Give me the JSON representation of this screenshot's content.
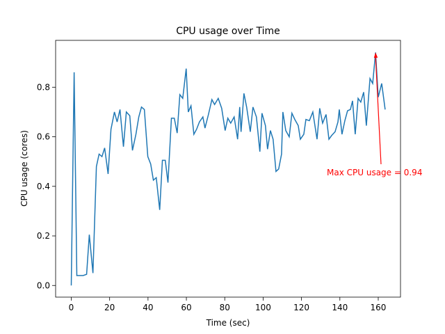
{
  "chart_data": {
    "type": "line",
    "title": "CPU usage over Time",
    "x_label": "Time (sec)",
    "y_label": "CPU usage (cores)",
    "annotation": "Max CPU usage = 0.94",
    "annotation_color": "#ff0000",
    "x": [
      0,
      1.5,
      2.9,
      4.4,
      6.2,
      8.0,
      9.4,
      11.3,
      13.1,
      14.5,
      16.0,
      17.4,
      19.2,
      20.7,
      22.5,
      23.9,
      25.4,
      27.2,
      28.7,
      30.5,
      31.9,
      33.7,
      35.2,
      36.6,
      38.1,
      39.9,
      41.4,
      42.8,
      44.3,
      46.1,
      47.5,
      49.0,
      50.4,
      52.2,
      53.7,
      55.2,
      56.6,
      58.1,
      59.9,
      61.0,
      62.4,
      63.9,
      65.3,
      66.8,
      68.6,
      69.7,
      71.5,
      73.3,
      74.7,
      76.6,
      78.4,
      80.2,
      81.6,
      83.1,
      84.9,
      86.7,
      87.8,
      88.5,
      90.0,
      91.4,
      93.3,
      94.7,
      96.5,
      98.3,
      99.4,
      101.2,
      102.3,
      103.8,
      105.2,
      106.7,
      108.1,
      109.6,
      110.3,
      111.8,
      113.6,
      115.0,
      116.5,
      118.3,
      119.4,
      121.2,
      122.3,
      124.1,
      125.9,
      128.1,
      129.5,
      131.0,
      132.8,
      134.3,
      135.7,
      137.5,
      139.0,
      139.7,
      141.1,
      142.6,
      144.0,
      145.5,
      146.6,
      148.0,
      149.5,
      150.9,
      152.4,
      153.8,
      155.7,
      157.1,
      158.6,
      160.0,
      161.8,
      163.6
    ],
    "series": [
      {
        "name": "CPU usage",
        "color": "#1f77b4",
        "values": [
          0.0,
          0.86,
          0.04,
          0.04,
          0.04,
          0.045,
          0.205,
          0.05,
          0.48,
          0.53,
          0.52,
          0.555,
          0.45,
          0.63,
          0.7,
          0.66,
          0.71,
          0.56,
          0.7,
          0.685,
          0.545,
          0.61,
          0.68,
          0.72,
          0.71,
          0.52,
          0.49,
          0.425,
          0.435,
          0.305,
          0.505,
          0.505,
          0.415,
          0.675,
          0.675,
          0.615,
          0.77,
          0.755,
          0.875,
          0.7,
          0.725,
          0.61,
          0.63,
          0.66,
          0.68,
          0.635,
          0.69,
          0.75,
          0.73,
          0.755,
          0.715,
          0.625,
          0.675,
          0.655,
          0.68,
          0.59,
          0.72,
          0.62,
          0.775,
          0.72,
          0.62,
          0.72,
          0.68,
          0.54,
          0.695,
          0.645,
          0.55,
          0.625,
          0.59,
          0.46,
          0.47,
          0.53,
          0.7,
          0.625,
          0.6,
          0.695,
          0.67,
          0.645,
          0.59,
          0.61,
          0.67,
          0.665,
          0.7,
          0.59,
          0.715,
          0.655,
          0.69,
          0.59,
          0.605,
          0.62,
          0.66,
          0.71,
          0.61,
          0.665,
          0.705,
          0.71,
          0.745,
          0.61,
          0.755,
          0.74,
          0.78,
          0.645,
          0.835,
          0.815,
          0.94,
          0.76,
          0.815,
          0.71
        ]
      }
    ],
    "xlim": [
      -8.15,
      171.6
    ],
    "ylim": [
      -0.047,
      0.989
    ],
    "xticks": [
      0,
      20,
      40,
      60,
      80,
      100,
      120,
      140,
      160
    ],
    "yticks": [
      {
        "value": 0,
        "label": "0.0"
      },
      0.2,
      0.4,
      0.6,
      0.8
    ]
  }
}
